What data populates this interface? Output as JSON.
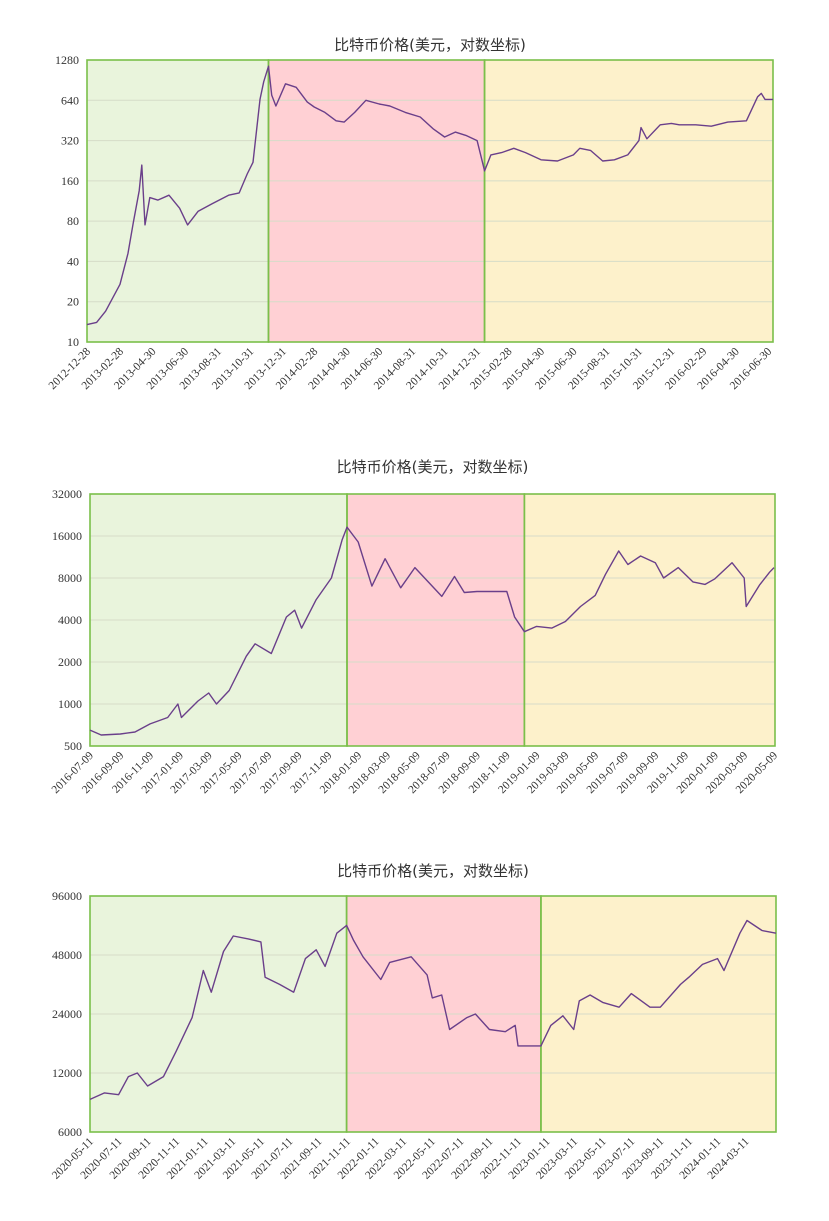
{
  "chart_data": [
    {
      "type": "line",
      "title": "比特币价格(美元，对数坐标)",
      "yscale": "log",
      "ylim": [
        10,
        1280
      ],
      "yticks": [
        "1280",
        "640",
        "320",
        "160",
        "80",
        "40",
        "20",
        "10"
      ],
      "ytick_values": [
        1280,
        640,
        320,
        160,
        80,
        40,
        20,
        10
      ],
      "xticks": [
        "2012-12-28",
        "2013-02-28",
        "2013-04-30",
        "2013-06-30",
        "2013-08-31",
        "2013-10-31",
        "2013-12-31",
        "2014-02-28",
        "2014-04-30",
        "2014-06-30",
        "2014-08-31",
        "2014-10-31",
        "2014-12-31",
        "2015-02-28",
        "2015-04-30",
        "2015-06-30",
        "2015-08-31",
        "2015-10-31",
        "2015-12-31",
        "2016-02-29",
        "2016-04-30",
        "2016-06-30"
      ],
      "xlim": [
        "2012-12-28",
        "2016-07-09"
      ],
      "regions": [
        {
          "from": "2012-12-28",
          "to": "2013-12-04",
          "color": "#e9f4dc"
        },
        {
          "from": "2013-12-04",
          "to": "2015-01-14",
          "color": "#ffd0d4"
        },
        {
          "from": "2015-01-14",
          "to": "2016-07-09",
          "color": "#fdf1cb"
        }
      ],
      "series": [
        {
          "color": "#6a3f8a",
          "x": [
            "2012-12-28",
            "2013-01-15",
            "2013-02-01",
            "2013-02-28",
            "2013-03-15",
            "2013-03-25",
            "2013-04-05",
            "2013-04-10",
            "2013-04-16",
            "2013-04-25",
            "2013-05-10",
            "2013-05-31",
            "2013-06-20",
            "2013-07-05",
            "2013-07-25",
            "2013-08-20",
            "2013-09-20",
            "2013-10-10",
            "2013-10-25",
            "2013-11-05",
            "2013-11-18",
            "2013-11-25",
            "2013-12-04",
            "2013-12-10",
            "2013-12-18",
            "2014-01-05",
            "2014-01-25",
            "2014-02-15",
            "2014-02-28",
            "2014-03-20",
            "2014-04-10",
            "2014-04-25",
            "2014-05-15",
            "2014-06-05",
            "2014-06-30",
            "2014-07-20",
            "2014-08-18",
            "2014-09-15",
            "2014-10-10",
            "2014-10-31",
            "2014-11-20",
            "2014-12-10",
            "2014-12-31",
            "2015-01-14",
            "2015-01-26",
            "2015-02-15",
            "2015-03-10",
            "2015-04-01",
            "2015-04-30",
            "2015-05-31",
            "2015-06-30",
            "2015-07-12",
            "2015-08-01",
            "2015-08-24",
            "2015-09-15",
            "2015-10-10",
            "2015-10-31",
            "2015-11-04",
            "2015-11-15",
            "2015-12-10",
            "2015-12-31",
            "2016-01-15",
            "2016-02-15",
            "2016-03-15",
            "2016-04-15",
            "2016-05-20",
            "2016-06-10",
            "2016-06-17",
            "2016-06-24",
            "2016-07-09"
          ],
          "values": [
            13.5,
            14,
            17,
            27,
            46,
            78,
            135,
            210,
            75,
            120,
            115,
            125,
            100,
            75,
            95,
            108,
            125,
            130,
            180,
            220,
            650,
            880,
            1150,
            700,
            580,
            850,
            800,
            620,
            570,
            520,
            450,
            440,
            520,
            640,
            600,
            580,
            520,
            480,
            390,
            340,
            370,
            350,
            320,
            190,
            250,
            260,
            280,
            260,
            230,
            225,
            250,
            280,
            270,
            225,
            230,
            250,
            320,
            400,
            330,
            420,
            430,
            420,
            420,
            410,
            440,
            450,
            680,
            720,
            650,
            650
          ]
        }
      ]
    },
    {
      "type": "line",
      "title": "比特币价格(美元，对数坐标)",
      "yscale": "log",
      "ylim": [
        500,
        32000
      ],
      "yticks": [
        "32000",
        "16000",
        "8000",
        "4000",
        "2000",
        "1000",
        "500"
      ],
      "ytick_values": [
        32000,
        16000,
        8000,
        4000,
        2000,
        1000,
        500
      ],
      "xticks": [
        "2016-07-09",
        "2016-09-09",
        "2016-11-09",
        "2017-01-09",
        "2017-03-09",
        "2017-05-09",
        "2017-07-09",
        "2017-09-09",
        "2017-11-09",
        "2018-01-09",
        "2018-03-09",
        "2018-05-09",
        "2018-07-09",
        "2018-09-09",
        "2018-11-09",
        "2019-01-09",
        "2019-03-09",
        "2019-05-09",
        "2019-07-09",
        "2019-09-09",
        "2019-11-09",
        "2020-01-09",
        "2020-03-09",
        "2020-05-09"
      ],
      "xlim": [
        "2016-07-09",
        "2020-05-11"
      ],
      "regions": [
        {
          "from": "2016-07-09",
          "to": "2017-12-17",
          "color": "#e9f4dc"
        },
        {
          "from": "2017-12-17",
          "to": "2018-12-15",
          "color": "#ffd0d4"
        },
        {
          "from": "2018-12-15",
          "to": "2020-05-11",
          "color": "#fdf1cb"
        }
      ],
      "series": [
        {
          "color": "#6a3f8a",
          "x": [
            "2016-07-09",
            "2016-08-01",
            "2016-09-09",
            "2016-10-09",
            "2016-11-09",
            "2016-12-15",
            "2017-01-05",
            "2017-01-12",
            "2017-02-15",
            "2017-03-09",
            "2017-03-25",
            "2017-04-20",
            "2017-05-25",
            "2017-06-12",
            "2017-07-15",
            "2017-08-15",
            "2017-09-01",
            "2017-09-15",
            "2017-10-15",
            "2017-11-15",
            "2017-12-07",
            "2017-12-17",
            "2018-01-09",
            "2018-02-06",
            "2018-03-05",
            "2018-04-06",
            "2018-05-05",
            "2018-06-29",
            "2018-07-25",
            "2018-08-14",
            "2018-09-09",
            "2018-11-09",
            "2018-11-25",
            "2018-12-15",
            "2019-01-09",
            "2019-02-09",
            "2019-03-09",
            "2019-04-09",
            "2019-05-09",
            "2019-05-30",
            "2019-06-26",
            "2019-07-15",
            "2019-08-10",
            "2019-09-09",
            "2019-09-26",
            "2019-10-26",
            "2019-11-25",
            "2019-12-20",
            "2020-01-09",
            "2020-02-13",
            "2020-03-09",
            "2020-03-13",
            "2020-04-09",
            "2020-04-30",
            "2020-05-09"
          ],
          "values": [
            650,
            600,
            610,
            630,
            720,
            800,
            1000,
            800,
            1050,
            1200,
            1000,
            1250,
            2200,
            2700,
            2300,
            4200,
            4700,
            3500,
            5600,
            8000,
            15000,
            18500,
            14500,
            7000,
            11000,
            6800,
            9500,
            5900,
            8200,
            6300,
            6400,
            6400,
            4200,
            3300,
            3600,
            3500,
            3900,
            5000,
            6000,
            8500,
            12500,
            10000,
            11500,
            10300,
            8000,
            9500,
            7500,
            7200,
            7900,
            10300,
            8000,
            5000,
            7100,
            8800,
            9500
          ]
        }
      ]
    },
    {
      "type": "line",
      "title": "比特币价格(美元，对数坐标)",
      "yscale": "log",
      "ylim": [
        6000,
        96000
      ],
      "yticks": [
        "96000",
        "48000",
        "24000",
        "12000",
        "6000"
      ],
      "ytick_values": [
        96000,
        48000,
        24000,
        12000,
        6000
      ],
      "xticks": [
        "2020-05-11",
        "2020-07-11",
        "2020-09-11",
        "2020-11-11",
        "2021-01-11",
        "2021-03-11",
        "2021-05-11",
        "2021-07-11",
        "2021-09-11",
        "2021-11-11",
        "2022-01-11",
        "2022-03-11",
        "2022-05-11",
        "2022-07-11",
        "2022-09-11",
        "2022-11-11",
        "2023-01-11",
        "2023-03-11",
        "2023-05-11",
        "2023-07-11",
        "2023-09-11",
        "2023-11-11",
        "2024-01-11",
        "2024-03-11"
      ],
      "xlim": [
        "2020-05-11",
        "2024-05-15"
      ],
      "regions": [
        {
          "from": "2020-05-11",
          "to": "2021-11-10",
          "color": "#e9f4dc"
        },
        {
          "from": "2021-11-10",
          "to": "2022-12-30",
          "color": "#ffd0d4"
        },
        {
          "from": "2022-12-30",
          "to": "2024-05-15",
          "color": "#fdf1cb"
        }
      ],
      "series": [
        {
          "color": "#6a3f8a",
          "x": [
            "2020-05-11",
            "2020-06-11",
            "2020-07-11",
            "2020-08-01",
            "2020-08-20",
            "2020-09-11",
            "2020-10-15",
            "2020-11-11",
            "2020-12-15",
            "2021-01-08",
            "2021-01-25",
            "2021-02-20",
            "2021-03-13",
            "2021-04-14",
            "2021-05-11",
            "2021-05-20",
            "2021-06-20",
            "2021-07-20",
            "2021-08-14",
            "2021-09-06",
            "2021-09-25",
            "2021-10-20",
            "2021-11-10",
            "2021-11-25",
            "2021-12-15",
            "2022-01-22",
            "2022-02-10",
            "2022-03-28",
            "2022-05-01",
            "2022-05-12",
            "2022-06-01",
            "2022-06-18",
            "2022-07-25",
            "2022-08-12",
            "2022-09-11",
            "2022-10-15",
            "2022-11-05",
            "2022-11-11",
            "2022-12-30",
            "2023-01-20",
            "2023-02-15",
            "2023-03-10",
            "2023-03-22",
            "2023-04-14",
            "2023-05-11",
            "2023-06-15",
            "2023-07-11",
            "2023-08-20",
            "2023-09-11",
            "2023-10-24",
            "2023-11-11",
            "2023-12-10",
            "2024-01-11",
            "2024-01-25",
            "2024-02-28",
            "2024-03-14",
            "2024-04-15",
            "2024-05-15"
          ],
          "values": [
            8800,
            9500,
            9300,
            11500,
            12000,
            10300,
            11500,
            15500,
            23000,
            40000,
            31000,
            50000,
            60000,
            58000,
            56000,
            37000,
            34000,
            31000,
            46000,
            51000,
            42000,
            62000,
            68000,
            57000,
            47000,
            36000,
            44000,
            47000,
            38000,
            29000,
            30000,
            20000,
            23000,
            24000,
            20000,
            19500,
            21000,
            16500,
            16500,
            21000,
            23500,
            20000,
            28000,
            30000,
            27500,
            26000,
            30500,
            26000,
            26000,
            34000,
            37000,
            43000,
            46000,
            40000,
            62000,
            72000,
            64000,
            62000
          ]
        }
      ]
    }
  ]
}
